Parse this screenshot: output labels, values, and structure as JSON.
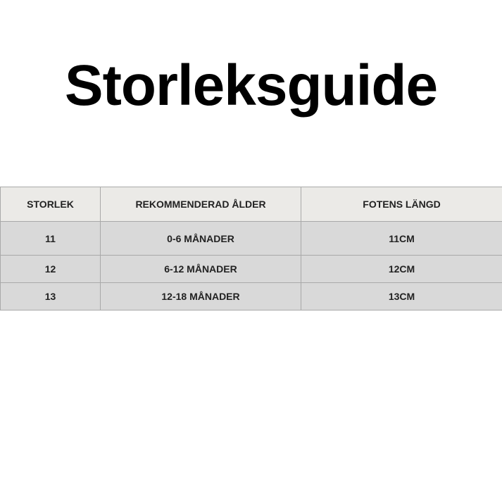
{
  "title": "Storleksguide",
  "table": {
    "headers": [
      "STORLEK",
      "REKOMMENDERAD ÅLDER",
      "FOTENS LÄNGD"
    ],
    "rows": [
      [
        "11",
        "0-6 MÅNADER",
        "11CM"
      ],
      [
        "12",
        "6-12 MÅNADER",
        "12CM"
      ],
      [
        "13",
        "12-18 MÅNADER",
        "13CM"
      ]
    ]
  }
}
